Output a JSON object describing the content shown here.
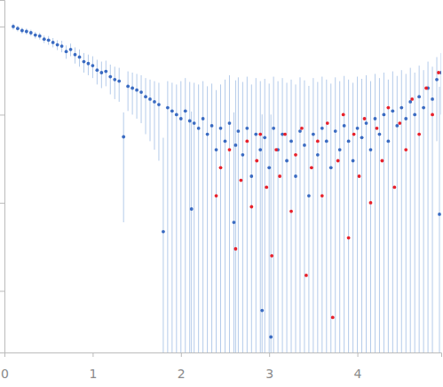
{
  "chart_data": {
    "type": "scatter",
    "log": "y",
    "tick_labels": "x",
    "xlim": [
      0,
      4.95
    ],
    "ylim": [
      0.0002,
      2
    ],
    "xticks": [
      0,
      1,
      2,
      3,
      4
    ],
    "yticks": [
      0.001,
      0.01,
      0.1,
      1
    ],
    "series": [
      {
        "color": "#3a6bc2",
        "marker": "circle",
        "x": [
          0.1,
          0.15,
          0.2,
          0.25,
          0.3,
          0.35,
          0.4,
          0.45,
          0.5,
          0.55,
          0.6,
          0.65,
          0.7,
          0.75,
          0.8,
          0.85,
          0.9,
          0.95,
          1.0,
          1.05,
          1.1,
          1.15,
          1.2,
          1.25,
          1.3,
          1.35,
          1.4,
          1.45,
          1.5,
          1.55,
          1.6,
          1.65,
          1.7,
          1.75,
          1.8,
          1.85,
          1.9,
          1.95,
          2.0,
          2.05,
          2.1,
          2.12,
          2.15,
          2.2,
          2.25,
          2.3,
          2.35,
          2.4,
          2.45,
          2.5,
          2.55,
          2.6,
          2.62,
          2.65,
          2.7,
          2.75,
          2.8,
          2.85,
          2.9,
          2.92,
          2.95,
          3.0,
          3.02,
          3.05,
          3.1,
          3.15,
          3.2,
          3.25,
          3.3,
          3.35,
          3.4,
          3.45,
          3.5,
          3.55,
          3.6,
          3.65,
          3.7,
          3.75,
          3.8,
          3.85,
          3.9,
          3.95,
          4.0,
          4.05,
          4.1,
          4.15,
          4.2,
          4.25,
          4.3,
          4.35,
          4.4,
          4.45,
          4.5,
          4.55,
          4.6,
          4.65,
          4.7,
          4.75,
          4.8,
          4.85,
          4.9,
          4.93,
          4.95
        ],
        "values": [
          1.0,
          0.95,
          0.9,
          0.88,
          0.85,
          0.8,
          0.78,
          0.72,
          0.7,
          0.66,
          0.62,
          0.6,
          0.52,
          0.55,
          0.48,
          0.45,
          0.4,
          0.38,
          0.36,
          0.32,
          0.3,
          0.31,
          0.27,
          0.25,
          0.24,
          0.056,
          0.21,
          0.2,
          0.19,
          0.18,
          0.16,
          0.15,
          0.14,
          0.13,
          0.0047,
          0.12,
          0.11,
          0.1,
          0.09,
          0.11,
          0.085,
          0.0085,
          0.08,
          0.07,
          0.09,
          0.06,
          0.075,
          0.04,
          0.07,
          0.05,
          0.08,
          0.006,
          0.045,
          0.065,
          0.035,
          0.07,
          0.02,
          0.06,
          0.04,
          0.0006,
          0.055,
          0.025,
          0.0003,
          0.07,
          0.04,
          0.06,
          0.03,
          0.05,
          0.02,
          0.065,
          0.045,
          0.012,
          0.06,
          0.035,
          0.07,
          0.05,
          0.025,
          0.065,
          0.04,
          0.075,
          0.05,
          0.03,
          0.07,
          0.055,
          0.08,
          0.04,
          0.09,
          0.06,
          0.1,
          0.05,
          0.11,
          0.075,
          0.12,
          0.09,
          0.14,
          0.1,
          0.16,
          0.12,
          0.2,
          0.15,
          0.25,
          0.0074,
          0.3
        ],
        "error": [
          0.08,
          0.07,
          0.07,
          0.07,
          0.07,
          0.07,
          0.07,
          0.07,
          0.08,
          0.08,
          0.08,
          0.09,
          0.09,
          0.09,
          0.1,
          0.1,
          0.1,
          0.1,
          0.1,
          0.1,
          0.1,
          0.1,
          0.1,
          0.1,
          0.1,
          0.05,
          0.1,
          0.1,
          0.1,
          0.1,
          0.1,
          0.1,
          0.1,
          0.1,
          0.05,
          0.12,
          0.12,
          0.12,
          0.15,
          0.15,
          0.15,
          0.1,
          0.15,
          0.15,
          0.15,
          0.15,
          0.15,
          0.15,
          0.15,
          0.2,
          0.2,
          0.1,
          0.2,
          0.2,
          0.2,
          0.2,
          0.2,
          0.2,
          0.2,
          0.1,
          0.2,
          0.2,
          0.1,
          0.2,
          0.2,
          0.2,
          0.2,
          0.2,
          0.2,
          0.2,
          0.2,
          0.2,
          0.2,
          0.2,
          0.2,
          0.2,
          0.2,
          0.2,
          0.2,
          0.2,
          0.2,
          0.2,
          0.2,
          0.2,
          0.2,
          0.2,
          0.2,
          0.2,
          0.2,
          0.2,
          0.2,
          0.2,
          0.2,
          0.2,
          0.2,
          0.2,
          0.2,
          0.2,
          0.2,
          0.2,
          0.2,
          0.2,
          0.2
        ]
      },
      {
        "color": "#e8212b",
        "marker": "circle",
        "x": [
          2.4,
          2.45,
          2.55,
          2.62,
          2.68,
          2.75,
          2.8,
          2.86,
          2.9,
          2.97,
          3.03,
          3.08,
          3.12,
          3.18,
          3.25,
          3.3,
          3.37,
          3.42,
          3.48,
          3.55,
          3.6,
          3.66,
          3.72,
          3.78,
          3.84,
          3.9,
          3.96,
          4.02,
          4.08,
          4.15,
          4.22,
          4.28,
          4.35,
          4.42,
          4.48,
          4.55,
          4.62,
          4.7,
          4.78,
          4.85,
          4.92
        ],
        "values": [
          0.012,
          0.025,
          0.04,
          0.003,
          0.018,
          0.05,
          0.009,
          0.03,
          0.06,
          0.015,
          0.0025,
          0.04,
          0.02,
          0.06,
          0.008,
          0.035,
          0.07,
          0.0015,
          0.025,
          0.05,
          0.012,
          0.08,
          0.0005,
          0.03,
          0.1,
          0.004,
          0.06,
          0.02,
          0.09,
          0.01,
          0.07,
          0.03,
          0.12,
          0.015,
          0.08,
          0.04,
          0.15,
          0.06,
          0.2,
          0.1,
          0.3
        ]
      }
    ]
  }
}
